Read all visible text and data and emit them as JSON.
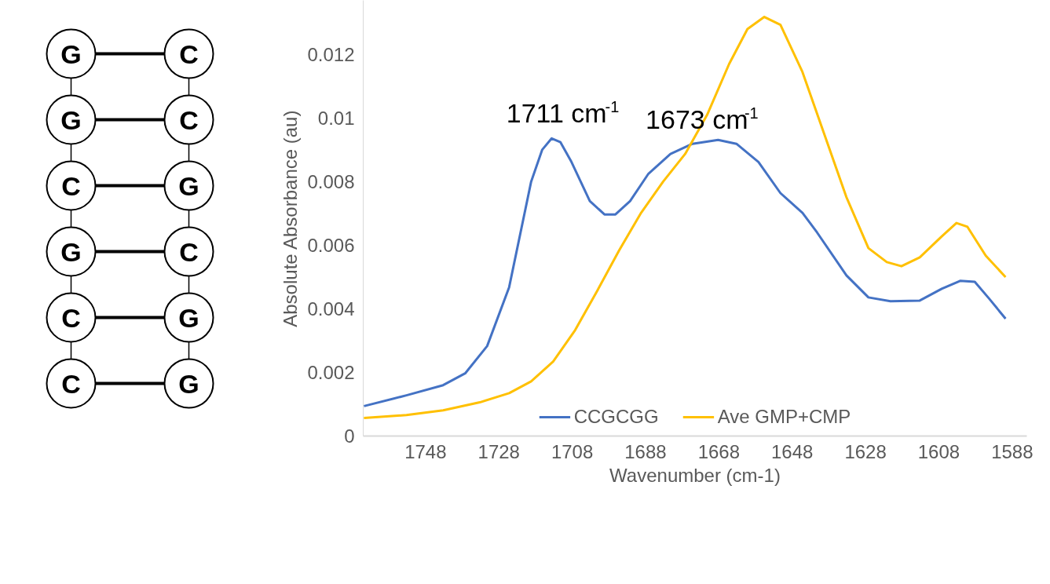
{
  "chart_data": [
    {
      "type": "other",
      "annotations": [
        "G",
        "C",
        "G",
        "C",
        "C",
        "G",
        "G",
        "C",
        "C",
        "G",
        "C",
        "G"
      ]
    },
    {
      "type": "line",
      "xlabel": "Wavenumber (cm-1)",
      "ylabel": "Absolute Absorbance (au)",
      "xlim": [
        1765,
        1584
      ],
      "xticks": [
        1748,
        1728,
        1708,
        1688,
        1668,
        1648,
        1628,
        1608,
        1588
      ],
      "ylim": [
        0,
        0.0137
      ],
      "yticks": [
        0,
        0.002,
        0.004,
        0.006,
        0.008,
        0.01,
        0.012
      ],
      "grid": false,
      "legend": "bottom",
      "marker": "none",
      "line_style": "solid",
      "annotations": [
        {
          "text": "1711 cm$^{-1}$",
          "x": 1711,
          "y": 0.0094
        },
        {
          "text": "1673 cm$^{-1}$",
          "x": 1673,
          "y": 0.0092
        }
      ],
      "series": [
        {
          "name": "CCGCGG",
          "color": "#4472c4",
          "x": [
            1764.8,
            1753.2,
            1743.2,
            1737.2,
            1731.2,
            1725.2,
            1719.2,
            1716.2,
            1713.6,
            1711.2,
            1708.2,
            1703.2,
            1699.2,
            1696.2,
            1692.2,
            1687.2,
            1681.2,
            1675.2,
            1668.2,
            1663.2,
            1657.2,
            1651.2,
            1645.2,
            1641.2,
            1633.2,
            1627.2,
            1621.2,
            1613.2,
            1607.2,
            1602.2,
            1598.2,
            1594.2,
            1589.8
          ],
          "values": [
            0.00094,
            0.00128,
            0.0016,
            0.00197,
            0.00283,
            0.00468,
            0.008,
            0.009,
            0.00936,
            0.00924,
            0.00862,
            0.00739,
            0.00697,
            0.00697,
            0.00739,
            0.00825,
            0.00887,
            0.00919,
            0.00931,
            0.00919,
            0.00862,
            0.00764,
            0.00702,
            0.0064,
            0.00505,
            0.00436,
            0.00424,
            0.00426,
            0.00463,
            0.00488,
            0.00485,
            0.00431,
            0.00369
          ]
        },
        {
          "name": "Ave GMP+CMP",
          "color": "#ffc000",
          "x": [
            1764.8,
            1753.2,
            1743.2,
            1733.2,
            1725.2,
            1719.2,
            1713.2,
            1707.2,
            1701.2,
            1695.2,
            1689.2,
            1683.2,
            1677.2,
            1671.2,
            1665.2,
            1660.2,
            1655.6,
            1651.2,
            1645.2,
            1639.2,
            1633.2,
            1627.2,
            1622.2,
            1618.2,
            1613.2,
            1607.2,
            1603.2,
            1600.2,
            1595.2,
            1589.8
          ],
          "values": [
            0.00057,
            0.00066,
            0.00081,
            0.00106,
            0.00135,
            0.00172,
            0.00234,
            0.00333,
            0.00456,
            0.00584,
            0.00702,
            0.008,
            0.00887,
            0.0101,
            0.0117,
            0.0128,
            0.01318,
            0.01293,
            0.01145,
            0.00948,
            0.00751,
            0.00591,
            0.00547,
            0.00534,
            0.00562,
            0.00628,
            0.0067,
            0.00658,
            0.00567,
            0.005
          ]
        }
      ]
    }
  ]
}
